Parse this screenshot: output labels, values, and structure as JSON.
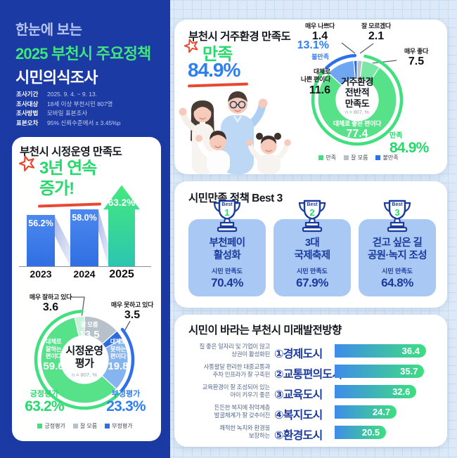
{
  "colors": {
    "navy_bg": "#1b3aa4",
    "navy_text": "#1b3a9e",
    "green_accent": "#27d96c",
    "blue_accent": "#2f7ef0",
    "red_accent": "#e8482f",
    "bar_blue": "#3a7ae9",
    "card_light_blue": "#a9c9f4"
  },
  "header": {
    "title_line1": "한눈에 보는",
    "title_line2": "2025 부천시 주요정책",
    "title_line3": "시민의식조사",
    "survey_info": [
      {
        "label": "조사기간",
        "value": "2025. 9. 4. ~ 9. 13."
      },
      {
        "label": "조사대상",
        "value": "18세 이상 부천시민 807명"
      },
      {
        "label": "조사방법",
        "value": "모바일 표본조사"
      },
      {
        "label": "표본오차",
        "value": "95% 신뢰수준에서 ± 3.45%p"
      }
    ]
  },
  "admin": {
    "title": "부천시 시정운영 만족도",
    "highlight_line1": "3년 연속",
    "highlight_line2": "증가!",
    "years": [
      "2023",
      "2024",
      "2025"
    ],
    "bar_labels": [
      "56.2%",
      "58.0%",
      "63.2%"
    ],
    "donut": {
      "callout_very_good": {
        "label": "매우 잘하고 있다",
        "value": "3.6"
      },
      "callout_very_bad": {
        "label": "매우 못하고 있다",
        "value": "3.5"
      },
      "seg_unknown": {
        "label": "잘 모름",
        "value": "13.5"
      },
      "seg_good": {
        "label": "대체로\n잘하는\n편이다",
        "value": "59.6"
      },
      "seg_bad": {
        "label": "대체로\n못하는\n편이다",
        "value": "19.8"
      },
      "center_title": "시정운영\n평가",
      "center_note": "n = 807, %",
      "positive": {
        "label": "긍정평가",
        "value": "63.2%"
      },
      "negative": {
        "label": "부정평가",
        "value": "23.3%"
      },
      "legend": [
        "긍정평가",
        "잘 모름",
        "부정평가"
      ]
    }
  },
  "residence": {
    "title": "부천시 거주환경 만족도",
    "headline_label": "만족",
    "headline_value": "84.9%",
    "dissatisfied_value": "13.1%",
    "dissatisfied_label": "불만족",
    "donut": {
      "callout_very_bad": {
        "label": "매우 나쁘다",
        "value": "1.4"
      },
      "callout_unknown": {
        "label": "잘 모르겠다",
        "value": "2.1"
      },
      "callout_very_good": {
        "label": "매우 좋다",
        "value": "7.5"
      },
      "callout_bad": {
        "label": "대체로\n나쁜 편이다",
        "value": "11.6"
      },
      "seg_good": {
        "label": "대체로 좋은 편이다",
        "value": "77.4"
      },
      "center_title": "거주환경\n전반적\n만족도",
      "center_note": "n = 807, %",
      "satisfied": {
        "label": "만족",
        "value": "84.9%"
      },
      "legend": [
        "만족",
        "잘 모름",
        "불만족"
      ]
    }
  },
  "best3": {
    "title": "시민만족 정책 Best 3",
    "cards": [
      {
        "rank_label": "Best",
        "rank": "1",
        "name": "부천페이\n활성화",
        "metric": "시민 만족도",
        "value": "70.4%"
      },
      {
        "rank_label": "Best",
        "rank": "2",
        "name": "3대\n국제축제",
        "metric": "시민 만족도",
        "value": "67.9%"
      },
      {
        "rank_label": "Best",
        "rank": "3",
        "name": "걷고 싶은 길\n공원·녹지 조성",
        "metric": "시민 만족도",
        "value": "64.8%"
      }
    ]
  },
  "future": {
    "title": "시민이 바라는 부천시 미래발전방향",
    "items": [
      {
        "desc": "질 좋은 일자리 및 기업이 많고\n상권이 활성화된",
        "number": "①",
        "name": "경제도시",
        "value": "36.4"
      },
      {
        "desc": "사통팔달 편리한 대중교통과\n주차 인프라가 잘 구축된",
        "number": "②",
        "name": "교통편의도시",
        "value": "35.7"
      },
      {
        "desc": "교육환경이 잘 조성되어 있는\n아이 키우기 좋은",
        "number": "③",
        "name": "교육도시",
        "value": "32.6"
      },
      {
        "desc": "든든한 복지에 취약계층\n발굴체계가 잘 갖추어진",
        "number": "④",
        "name": "복지도시",
        "value": "24.7"
      },
      {
        "desc": "쾌적한 녹지와 환경을\n보장하는",
        "number": "⑤",
        "name": "환경도시",
        "value": "20.5"
      }
    ]
  },
  "chart_data": [
    {
      "type": "bar",
      "title": "부천시 시정운영 만족도 (3년 연속 증가)",
      "categories": [
        "2023",
        "2024",
        "2025"
      ],
      "values": [
        56.2,
        58.0,
        63.2
      ],
      "unit": "%"
    },
    {
      "type": "pie",
      "title": "시정운영 평가",
      "sample": "n = 807, %",
      "labels": [
        "잘 모름",
        "매우 못하고 있다",
        "대체로 못하는 편이다",
        "대체로 잘하는 편이다",
        "매우 잘하고 있다"
      ],
      "values": [
        13.5,
        3.5,
        19.8,
        59.6,
        3.6
      ],
      "colors": [
        "#b6c1ca",
        "#2f6be0",
        "#85b4f1",
        "#57e289",
        "#c9f2da"
      ],
      "summary": [
        {
          "label": "긍정평가",
          "value": 63.2
        },
        {
          "label": "부정평가",
          "value": 23.3
        }
      ]
    },
    {
      "type": "pie",
      "title": "거주환경 전반적 만족도",
      "sample": "n = 807, %",
      "labels": [
        "잘 모르겠다",
        "매우 좋다",
        "대체로 좋은 편이다",
        "대체로 나쁜 편이다",
        "매우 나쁘다"
      ],
      "values": [
        2.1,
        7.5,
        77.4,
        11.6,
        1.4
      ],
      "colors": [
        "#b6c1ca",
        "#7ae8a5",
        "#57e289",
        "#6ea6f2",
        "#2f6be0"
      ],
      "summary": [
        {
          "label": "만족",
          "value": 84.9
        },
        {
          "label": "불만족",
          "value": 13.1
        }
      ]
    },
    {
      "type": "bar",
      "orientation": "horizontal",
      "title": "시민이 바라는 부천시 미래발전방향",
      "categories": [
        "경제도시",
        "교통편의도시",
        "교육도시",
        "복지도시",
        "환경도시"
      ],
      "values": [
        36.4,
        35.7,
        32.6,
        24.7,
        20.5
      ],
      "unit": "%"
    }
  ]
}
